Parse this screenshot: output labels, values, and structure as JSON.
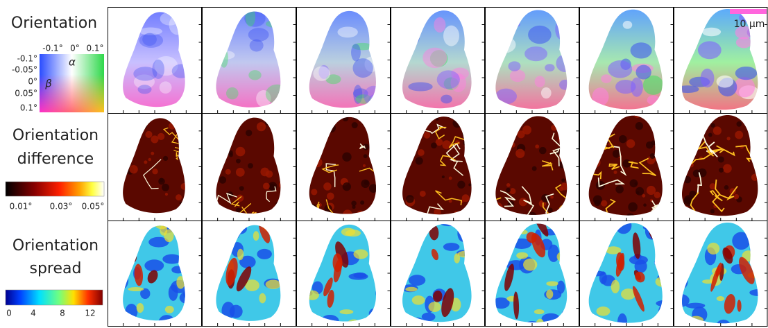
{
  "row_labels": [
    [
      "Orientation"
    ],
    [
      "Orientation",
      "difference"
    ],
    [
      "Orientation",
      "spread"
    ]
  ],
  "orientation_key": {
    "alpha_ticks": [
      "-0.1°",
      "0°",
      "0.1°"
    ],
    "beta_ticks": [
      "-0.1°",
      "-0.05°",
      "0°",
      "0.05°",
      "0.1°"
    ],
    "alpha": "α",
    "beta": "β"
  },
  "difference_key": {
    "ticks": [
      "0.01°",
      "0.03°",
      "0.05°"
    ]
  },
  "spread_key": {
    "ticks": [
      "0",
      "4",
      "8",
      "12"
    ]
  },
  "scale_bar": "10 μm"
}
